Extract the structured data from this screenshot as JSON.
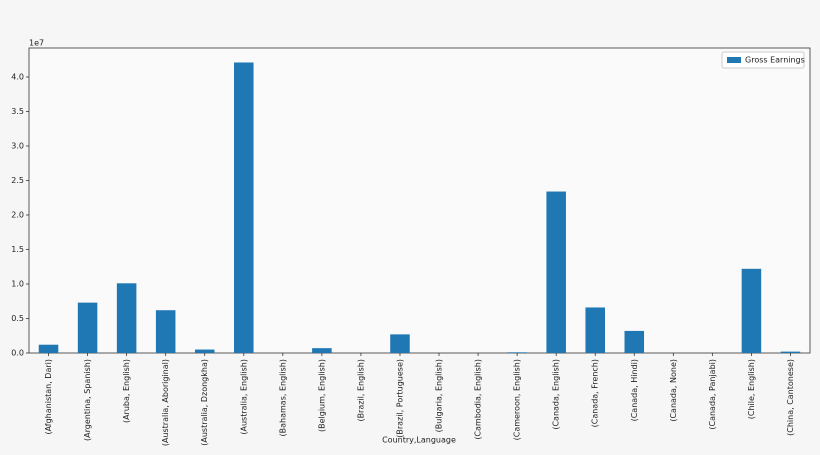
{
  "chart_data": {
    "type": "bar",
    "xlabel": "Country,Language",
    "offset_text": "1e7",
    "categories": [
      "(Afghanistan, Dari)",
      "(Argentina, Spanish)",
      "(Aruba, English)",
      "(Australia, Aboriginal)",
      "(Australia, Dzongkha)",
      "(Australia, English)",
      "(Bahamas, English)",
      "(Belgium, English)",
      "(Brazil, English)",
      "(Brazil, Portuguese)",
      "(Bulgaria, English)",
      "(Cambodia, English)",
      "(Cameroon, English)",
      "(Canada, English)",
      "(Canada, French)",
      "(Canada, Hindi)",
      "(Canada, None)",
      "(Canada, Panjabi)",
      "(Chile, English)",
      "(China, Cantonese)"
    ],
    "series": [
      {
        "name": "Gross Earnings",
        "color": "#1f77b4",
        "values": [
          0.12,
          0.73,
          1.01,
          0.62,
          0.05,
          4.21,
          0,
          0.07,
          0,
          0.27,
          0,
          0,
          0.01,
          2.34,
          0.66,
          0.32,
          0,
          0,
          1.22,
          0.02
        ]
      }
    ],
    "ylim": [
      0,
      4.42
    ],
    "yticks": [
      {
        "value": 0,
        "label": "0.0"
      },
      0.5,
      {
        "value": 1,
        "label": "1.0"
      },
      1.5,
      {
        "value": 2,
        "label": "2.0"
      },
      2.5,
      {
        "value": 3,
        "label": "3.0"
      },
      3.5,
      {
        "value": 4,
        "label": "4.0"
      }
    ],
    "legend": "upper right"
  }
}
